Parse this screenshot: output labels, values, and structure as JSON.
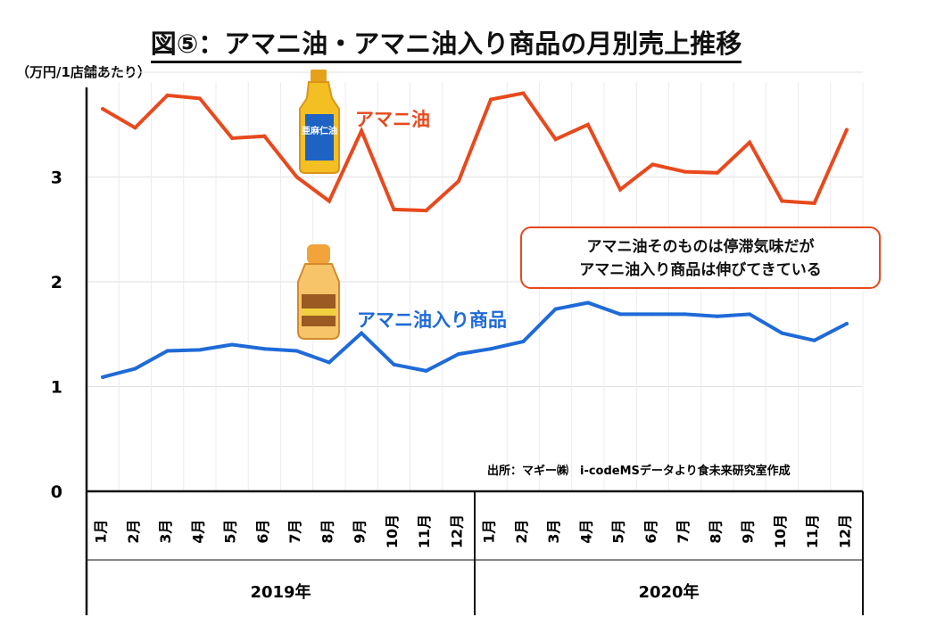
{
  "title": "図⑤：アマニ油・アマニ油入り商品の月別売上推移",
  "unit_label": "（万円/1店舗あたり）",
  "callout": {
    "line1": "アマニ油そのものは停滞気味だが",
    "line2": "アマニ油入り商品は伸びてきている"
  },
  "source": "出所：マギー㈱　i-codeMSデータより食未来研究室作成",
  "bottle_label": "亜麻仁油",
  "colors": {
    "oil": "#e8491d",
    "product": "#1f6ad8",
    "callout_border": "#e8491d"
  },
  "chart_data": {
    "type": "line",
    "ylabel": "（万円/1店舗あたり）",
    "ylim": [
      0,
      4
    ],
    "yticks": [
      0,
      1,
      2,
      3
    ],
    "grid": true,
    "years": [
      {
        "label": "2019年",
        "months": 12
      },
      {
        "label": "2020年",
        "months": 12
      }
    ],
    "categories": [
      "1月",
      "2月",
      "3月",
      "4月",
      "5月",
      "6月",
      "7月",
      "8月",
      "9月",
      "10月",
      "11月",
      "12月",
      "1月",
      "2月",
      "3月",
      "4月",
      "5月",
      "6月",
      "7月",
      "8月",
      "9月",
      "10月",
      "11月",
      "12月"
    ],
    "series": [
      {
        "name": "アマニ油",
        "values": [
          3.65,
          3.47,
          3.78,
          3.75,
          3.37,
          3.39,
          3.0,
          2.77,
          3.44,
          2.69,
          2.68,
          2.96,
          3.74,
          3.8,
          3.36,
          3.5,
          2.88,
          3.12,
          3.05,
          3.04,
          3.33,
          2.77,
          2.75,
          3.45
        ]
      },
      {
        "name": "アマニ油入り商品",
        "values": [
          1.09,
          1.17,
          1.34,
          1.35,
          1.4,
          1.36,
          1.34,
          1.23,
          1.51,
          1.21,
          1.15,
          1.31,
          1.36,
          1.43,
          1.74,
          1.8,
          1.69,
          1.69,
          1.69,
          1.67,
          1.69,
          1.51,
          1.44,
          1.6
        ]
      }
    ]
  }
}
